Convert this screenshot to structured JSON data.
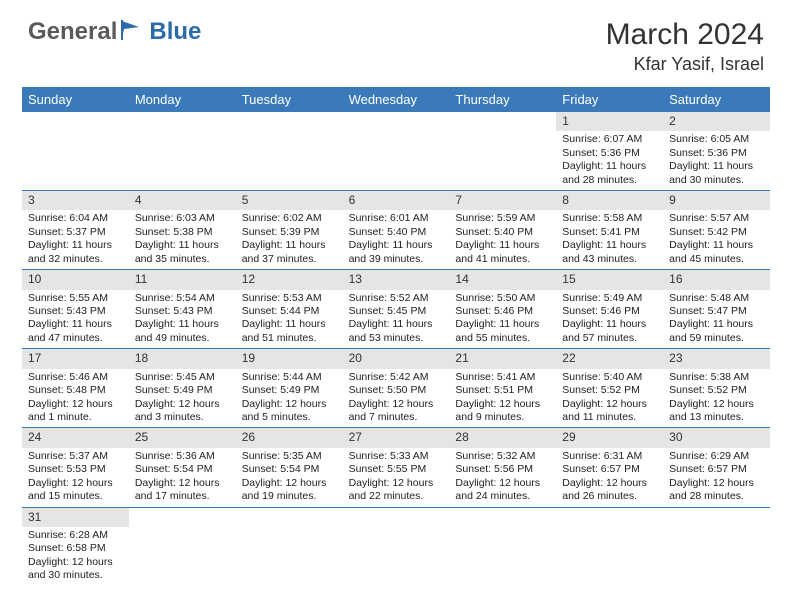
{
  "brand": {
    "part1": "General",
    "part2": "Blue"
  },
  "title": "March 2024",
  "location": "Kfar Yasif, Israel",
  "colors": {
    "header_bg": "#3a7ab8",
    "header_fg": "#ffffff",
    "shade_bg": "#e5e5e5",
    "rule": "#3a7ab8",
    "logo_gray": "#5a5a5a",
    "logo_blue": "#2b6ca8"
  },
  "weekdays": [
    "Sunday",
    "Monday",
    "Tuesday",
    "Wednesday",
    "Thursday",
    "Friday",
    "Saturday"
  ],
  "weeks": [
    [
      null,
      null,
      null,
      null,
      null,
      {
        "n": "1",
        "sr": "Sunrise: 6:07 AM",
        "ss": "Sunset: 5:36 PM",
        "d1": "Daylight: 11 hours",
        "d2": "and 28 minutes."
      },
      {
        "n": "2",
        "sr": "Sunrise: 6:05 AM",
        "ss": "Sunset: 5:36 PM",
        "d1": "Daylight: 11 hours",
        "d2": "and 30 minutes."
      }
    ],
    [
      {
        "n": "3",
        "sr": "Sunrise: 6:04 AM",
        "ss": "Sunset: 5:37 PM",
        "d1": "Daylight: 11 hours",
        "d2": "and 32 minutes."
      },
      {
        "n": "4",
        "sr": "Sunrise: 6:03 AM",
        "ss": "Sunset: 5:38 PM",
        "d1": "Daylight: 11 hours",
        "d2": "and 35 minutes."
      },
      {
        "n": "5",
        "sr": "Sunrise: 6:02 AM",
        "ss": "Sunset: 5:39 PM",
        "d1": "Daylight: 11 hours",
        "d2": "and 37 minutes."
      },
      {
        "n": "6",
        "sr": "Sunrise: 6:01 AM",
        "ss": "Sunset: 5:40 PM",
        "d1": "Daylight: 11 hours",
        "d2": "and 39 minutes."
      },
      {
        "n": "7",
        "sr": "Sunrise: 5:59 AM",
        "ss": "Sunset: 5:40 PM",
        "d1": "Daylight: 11 hours",
        "d2": "and 41 minutes."
      },
      {
        "n": "8",
        "sr": "Sunrise: 5:58 AM",
        "ss": "Sunset: 5:41 PM",
        "d1": "Daylight: 11 hours",
        "d2": "and 43 minutes."
      },
      {
        "n": "9",
        "sr": "Sunrise: 5:57 AM",
        "ss": "Sunset: 5:42 PM",
        "d1": "Daylight: 11 hours",
        "d2": "and 45 minutes."
      }
    ],
    [
      {
        "n": "10",
        "sr": "Sunrise: 5:55 AM",
        "ss": "Sunset: 5:43 PM",
        "d1": "Daylight: 11 hours",
        "d2": "and 47 minutes."
      },
      {
        "n": "11",
        "sr": "Sunrise: 5:54 AM",
        "ss": "Sunset: 5:43 PM",
        "d1": "Daylight: 11 hours",
        "d2": "and 49 minutes."
      },
      {
        "n": "12",
        "sr": "Sunrise: 5:53 AM",
        "ss": "Sunset: 5:44 PM",
        "d1": "Daylight: 11 hours",
        "d2": "and 51 minutes."
      },
      {
        "n": "13",
        "sr": "Sunrise: 5:52 AM",
        "ss": "Sunset: 5:45 PM",
        "d1": "Daylight: 11 hours",
        "d2": "and 53 minutes."
      },
      {
        "n": "14",
        "sr": "Sunrise: 5:50 AM",
        "ss": "Sunset: 5:46 PM",
        "d1": "Daylight: 11 hours",
        "d2": "and 55 minutes."
      },
      {
        "n": "15",
        "sr": "Sunrise: 5:49 AM",
        "ss": "Sunset: 5:46 PM",
        "d1": "Daylight: 11 hours",
        "d2": "and 57 minutes."
      },
      {
        "n": "16",
        "sr": "Sunrise: 5:48 AM",
        "ss": "Sunset: 5:47 PM",
        "d1": "Daylight: 11 hours",
        "d2": "and 59 minutes."
      }
    ],
    [
      {
        "n": "17",
        "sr": "Sunrise: 5:46 AM",
        "ss": "Sunset: 5:48 PM",
        "d1": "Daylight: 12 hours",
        "d2": "and 1 minute."
      },
      {
        "n": "18",
        "sr": "Sunrise: 5:45 AM",
        "ss": "Sunset: 5:49 PM",
        "d1": "Daylight: 12 hours",
        "d2": "and 3 minutes."
      },
      {
        "n": "19",
        "sr": "Sunrise: 5:44 AM",
        "ss": "Sunset: 5:49 PM",
        "d1": "Daylight: 12 hours",
        "d2": "and 5 minutes."
      },
      {
        "n": "20",
        "sr": "Sunrise: 5:42 AM",
        "ss": "Sunset: 5:50 PM",
        "d1": "Daylight: 12 hours",
        "d2": "and 7 minutes."
      },
      {
        "n": "21",
        "sr": "Sunrise: 5:41 AM",
        "ss": "Sunset: 5:51 PM",
        "d1": "Daylight: 12 hours",
        "d2": "and 9 minutes."
      },
      {
        "n": "22",
        "sr": "Sunrise: 5:40 AM",
        "ss": "Sunset: 5:52 PM",
        "d1": "Daylight: 12 hours",
        "d2": "and 11 minutes."
      },
      {
        "n": "23",
        "sr": "Sunrise: 5:38 AM",
        "ss": "Sunset: 5:52 PM",
        "d1": "Daylight: 12 hours",
        "d2": "and 13 minutes."
      }
    ],
    [
      {
        "n": "24",
        "sr": "Sunrise: 5:37 AM",
        "ss": "Sunset: 5:53 PM",
        "d1": "Daylight: 12 hours",
        "d2": "and 15 minutes."
      },
      {
        "n": "25",
        "sr": "Sunrise: 5:36 AM",
        "ss": "Sunset: 5:54 PM",
        "d1": "Daylight: 12 hours",
        "d2": "and 17 minutes."
      },
      {
        "n": "26",
        "sr": "Sunrise: 5:35 AM",
        "ss": "Sunset: 5:54 PM",
        "d1": "Daylight: 12 hours",
        "d2": "and 19 minutes."
      },
      {
        "n": "27",
        "sr": "Sunrise: 5:33 AM",
        "ss": "Sunset: 5:55 PM",
        "d1": "Daylight: 12 hours",
        "d2": "and 22 minutes."
      },
      {
        "n": "28",
        "sr": "Sunrise: 5:32 AM",
        "ss": "Sunset: 5:56 PM",
        "d1": "Daylight: 12 hours",
        "d2": "and 24 minutes."
      },
      {
        "n": "29",
        "sr": "Sunrise: 6:31 AM",
        "ss": "Sunset: 6:57 PM",
        "d1": "Daylight: 12 hours",
        "d2": "and 26 minutes."
      },
      {
        "n": "30",
        "sr": "Sunrise: 6:29 AM",
        "ss": "Sunset: 6:57 PM",
        "d1": "Daylight: 12 hours",
        "d2": "and 28 minutes."
      }
    ],
    [
      {
        "n": "31",
        "sr": "Sunrise: 6:28 AM",
        "ss": "Sunset: 6:58 PM",
        "d1": "Daylight: 12 hours",
        "d2": "and 30 minutes."
      },
      null,
      null,
      null,
      null,
      null,
      null
    ]
  ]
}
